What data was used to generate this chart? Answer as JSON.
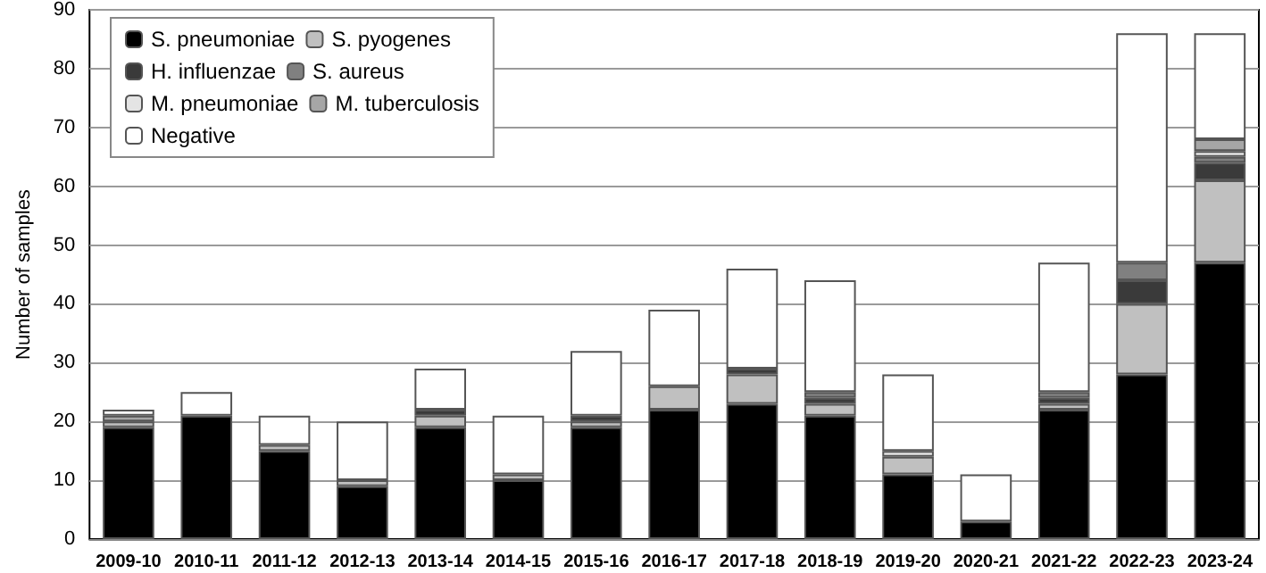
{
  "chart_data": {
    "type": "bar",
    "stacked": true,
    "ylabel": "Number of samples",
    "categories": [
      "2009-10",
      "2010-11",
      "2011-12",
      "2012-13",
      "2013-14",
      "2014-15",
      "2015-16",
      "2016-17",
      "2017-18",
      "2018-19",
      "2019-20",
      "2020-21",
      "2021-22",
      "2022-23",
      "2023-24"
    ],
    "series": [
      {
        "name": "S. pneumoniae",
        "color": "#000000",
        "values": [
          19,
          21,
          15,
          9,
          19,
          10,
          19,
          22,
          23,
          21,
          11,
          3,
          22,
          28,
          47
        ]
      },
      {
        "name": "S. pyogenes",
        "color": "#c0c0c0",
        "values": [
          1,
          null,
          1,
          1,
          2,
          1,
          1,
          4,
          5,
          2,
          3,
          null,
          1,
          12,
          14
        ]
      },
      {
        "name": "H. influenzae",
        "color": "#3a3a3a",
        "values": [
          null,
          null,
          null,
          null,
          1,
          null,
          1,
          null,
          1,
          1,
          null,
          null,
          1,
          4,
          3
        ]
      },
      {
        "name": "S. aureus",
        "color": "#808080",
        "values": [
          null,
          null,
          null,
          null,
          null,
          null,
          null,
          null,
          null,
          1,
          null,
          null,
          1,
          3,
          1
        ]
      },
      {
        "name": "M. pneumoniae",
        "color": "#e4e4e4",
        "values": [
          null,
          null,
          null,
          null,
          null,
          null,
          null,
          null,
          null,
          null,
          1,
          null,
          null,
          null,
          1
        ]
      },
      {
        "name": "M. tuberculosis",
        "color": "#a6a6a6",
        "values": [
          1,
          null,
          null,
          null,
          null,
          null,
          null,
          null,
          null,
          null,
          null,
          null,
          null,
          null,
          2
        ]
      },
      {
        "name": "Negative",
        "color": "#ffffff",
        "values": [
          1,
          4,
          5,
          10,
          7,
          10,
          11,
          13,
          17,
          19,
          13,
          8,
          22,
          39,
          18
        ]
      }
    ],
    "ylim": [
      0,
      90
    ],
    "yticks": [
      0,
      10,
      20,
      30,
      40,
      50,
      60,
      70,
      80,
      90
    ],
    "grid": "y",
    "legend": "top left"
  }
}
